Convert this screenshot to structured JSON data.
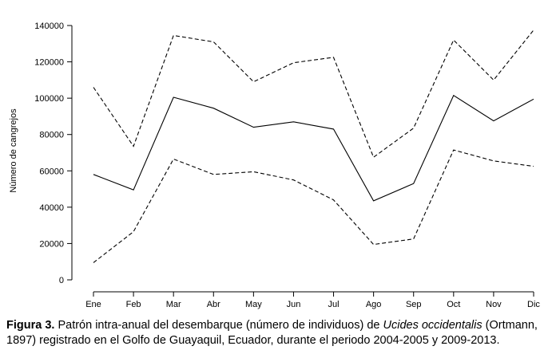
{
  "chart_data": {
    "type": "line",
    "title": "",
    "xlabel": "",
    "ylabel": "Número de cangrejos",
    "categories": [
      "Ene",
      "Feb",
      "Mar",
      "Abr",
      "May",
      "Jun",
      "Jul",
      "Ago",
      "Sep",
      "Oct",
      "Nov",
      "Dic"
    ],
    "ylim": [
      0,
      140000
    ],
    "yticks": [
      "0",
      "20000",
      "40000",
      "60000",
      "80000",
      "100000",
      "120000",
      "140000"
    ],
    "series": [
      {
        "style": "solid",
        "values": [
          58000,
          49500,
          100500,
          94500,
          84000,
          87000,
          83000,
          43500,
          53000,
          101500,
          87500,
          99500
        ]
      },
      {
        "style": "dashed",
        "values": [
          106000,
          73500,
          134500,
          131000,
          109000,
          119500,
          122500,
          67500,
          83500,
          132000,
          110000,
          137500
        ]
      },
      {
        "style": "dashed",
        "values": [
          9500,
          26500,
          66500,
          58000,
          59500,
          55000,
          44000,
          19500,
          22500,
          71500,
          65500,
          62500
        ]
      }
    ],
    "grid": false,
    "legend": "none",
    "line_color": "#000000"
  },
  "caption": {
    "label": "Figura 3.",
    "text_before": " Patrón intra-anual del desembarque (número de individuos) de ",
    "species": "Ucides occidentalis",
    "text_after": " (Ortmann, 1897) registrado en el Golfo de Guayaquil, Ecuador, durante el periodo 2004-2005 y 2009-2013."
  }
}
